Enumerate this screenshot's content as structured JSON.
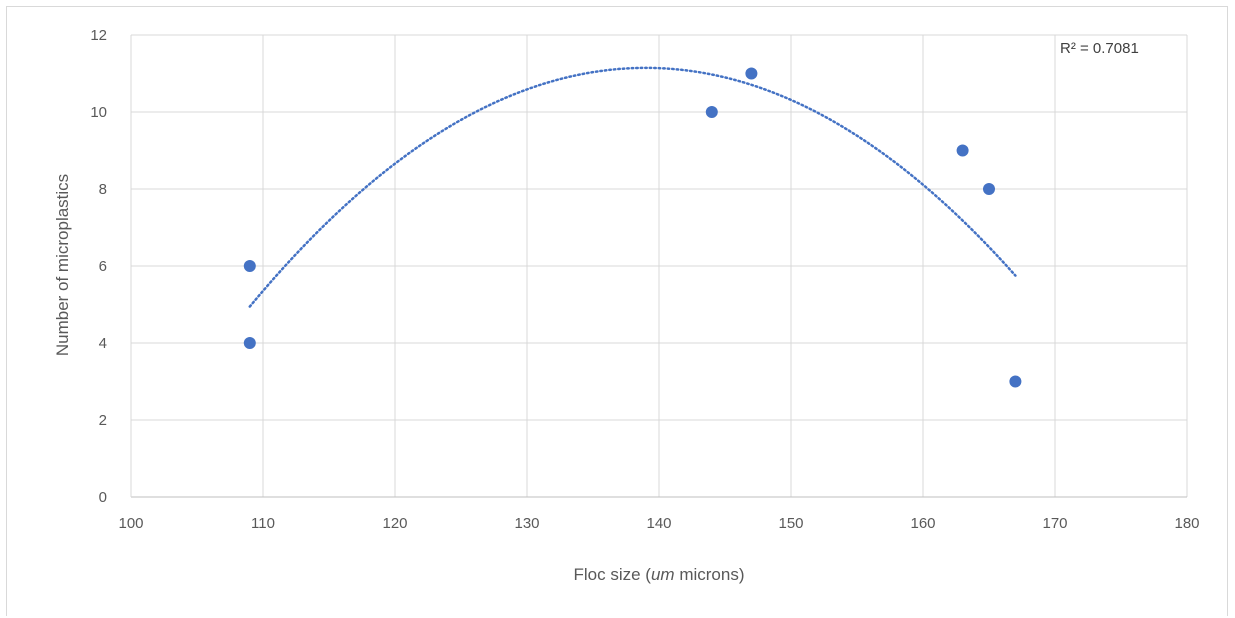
{
  "chart_data": {
    "type": "scatter",
    "title": "",
    "xlabel_parts": [
      "Floc size (",
      "um",
      " microns)"
    ],
    "ylabel": "Number of microplastics",
    "xlim": [
      100,
      180
    ],
    "ylim": [
      0,
      12
    ],
    "x_ticks": [
      100,
      110,
      120,
      130,
      140,
      150,
      160,
      170,
      180
    ],
    "y_ticks": [
      0,
      2,
      4,
      6,
      8,
      10,
      12
    ],
    "grid": true,
    "series": [
      {
        "points": [
          {
            "x": 109,
            "y": 6
          },
          {
            "x": 109,
            "y": 4
          },
          {
            "x": 144,
            "y": 10
          },
          {
            "x": 147,
            "y": 11
          },
          {
            "x": 163,
            "y": 9
          },
          {
            "x": 165,
            "y": 8
          },
          {
            "x": 167,
            "y": 3
          }
        ],
        "color": "#4472c4"
      }
    ],
    "trendline": {
      "type": "polynomial",
      "order": 2,
      "style": "dotted",
      "color": "#4472c4",
      "x_range": [
        109,
        167
      ],
      "r_squared_label": "R² = 0.7081"
    }
  }
}
